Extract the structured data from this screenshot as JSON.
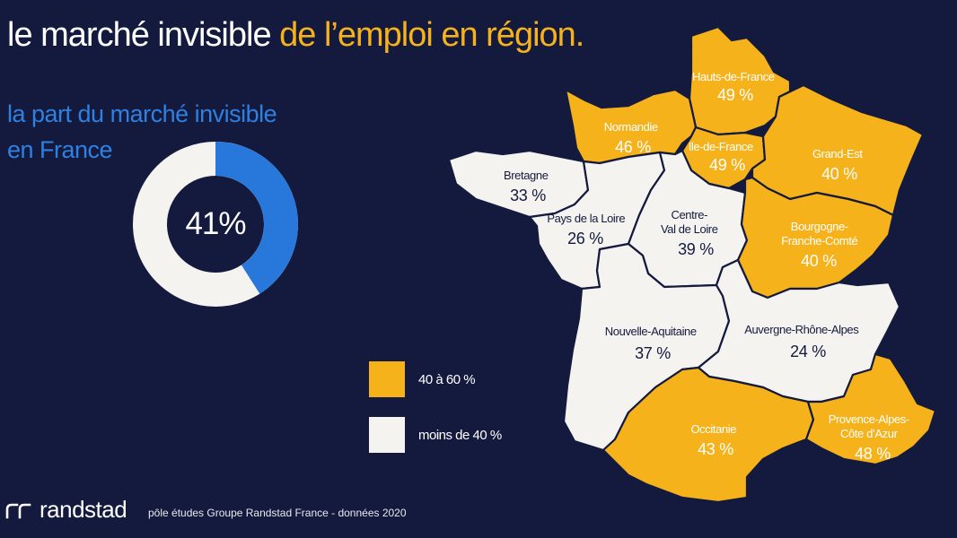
{
  "title": {
    "part1": "le marché invisible ",
    "part2": "de l’emploi en région."
  },
  "subtitle": {
    "line1": "la part du marché invisible",
    "line2": "en France"
  },
  "donut": {
    "value_label": "41%",
    "fraction": 0.41,
    "fill_color": "#2878dc",
    "rest_color": "#f4f3f0"
  },
  "legend": [
    {
      "label": "40 à 60 %",
      "color": "#f5b21b"
    },
    {
      "label": "moins de 40 %",
      "color": "#f4f3f0"
    }
  ],
  "colors": {
    "background": "#141a3e",
    "accent": "#f5b21b",
    "blue": "#2f80e0",
    "light": "#f4f3f0"
  },
  "regions": [
    {
      "id": "hauts-de-france",
      "name": "Hauts-de-France",
      "value": "49 %",
      "band": "high"
    },
    {
      "id": "normandie",
      "name": "Normandie",
      "value": "46 %",
      "band": "high"
    },
    {
      "id": "ile-de-france",
      "name": "Ile-de-France",
      "value": "49 %",
      "band": "high"
    },
    {
      "id": "grand-est",
      "name": "Grand-Est",
      "value": "40 %",
      "band": "high"
    },
    {
      "id": "bretagne",
      "name": "Bretagne",
      "value": "33 %",
      "band": "low"
    },
    {
      "id": "pays-de-la-loire",
      "name": "Pays de la Loire",
      "value": "26 %",
      "band": "low"
    },
    {
      "id": "centre-val-de-loire",
      "name": "Centre-\nVal de Loire",
      "value": "39 %",
      "band": "low"
    },
    {
      "id": "bourgogne-franche-comte",
      "name": "Bourgogne-\nFranche-Comté",
      "value": "40 %",
      "band": "high"
    },
    {
      "id": "nouvelle-aquitaine",
      "name": "Nouvelle-Aquitaine",
      "value": "37 %",
      "band": "low"
    },
    {
      "id": "auvergne-rhone-alpes",
      "name": "Auvergne-Rhône-Alpes",
      "value": "24 %",
      "band": "low"
    },
    {
      "id": "occitanie",
      "name": "Occitanie",
      "value": "43 %",
      "band": "high"
    },
    {
      "id": "provence-alpes-cote-d-azur",
      "name": "Provence-Alpes-\nCôte d’Azur",
      "value": "48 %",
      "band": "high"
    }
  ],
  "footer": {
    "brand": "randstad",
    "source": "pôle études Groupe Randstad France - données 2020"
  }
}
